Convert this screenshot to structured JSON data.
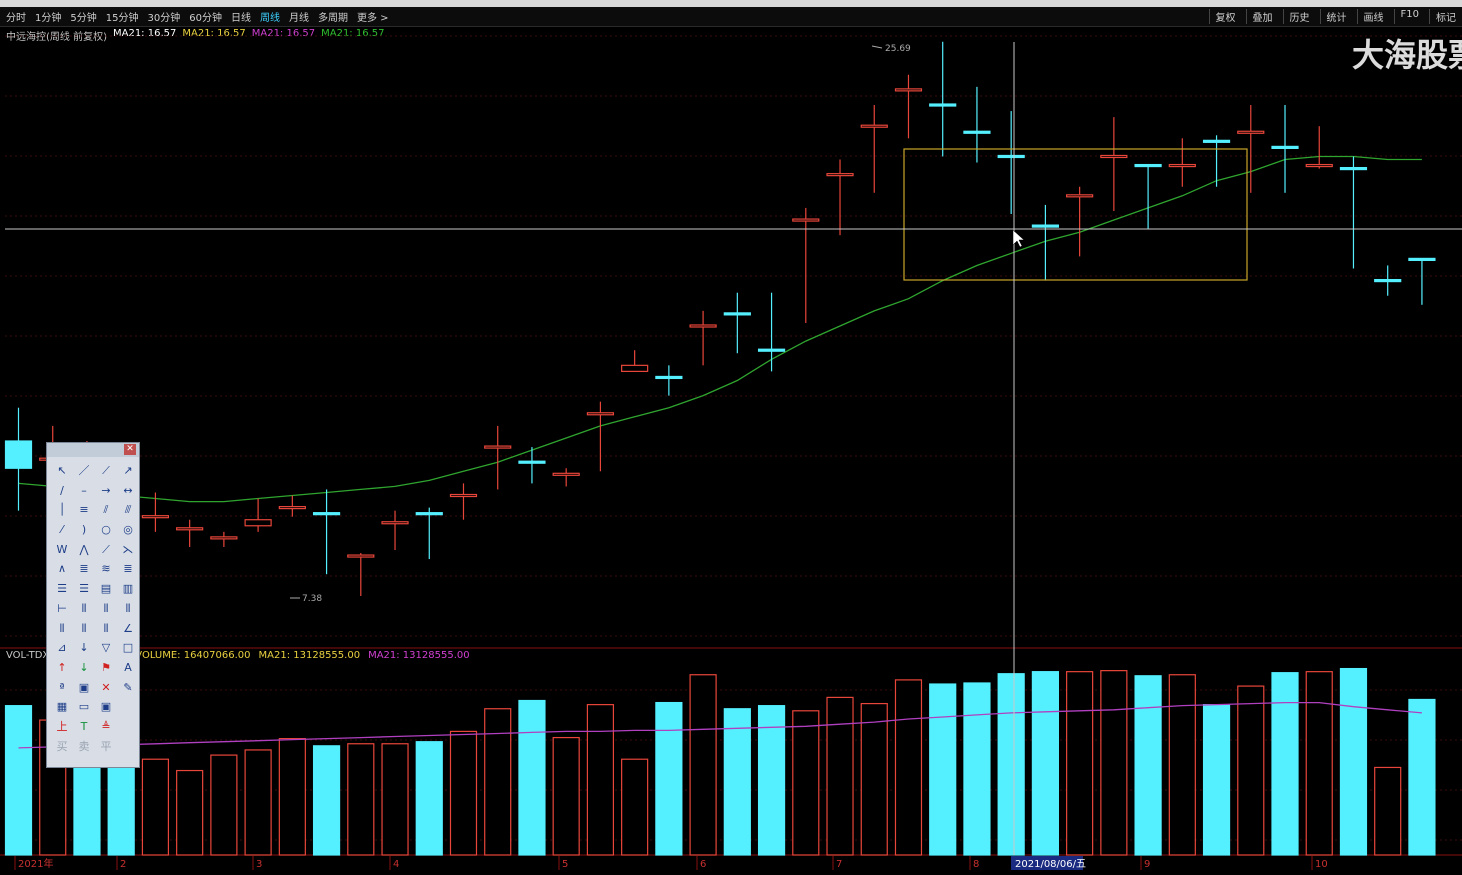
{
  "toolbar": {
    "period_tabs": [
      "分时",
      "1分钟",
      "5分钟",
      "15分钟",
      "30分钟",
      "60分钟",
      "日线",
      "周线",
      "月线",
      "多周期",
      "更多 >"
    ],
    "active_tab": "周线",
    "right_buttons": [
      "复权",
      "叠加",
      "历史",
      "统计",
      "画线",
      "F10",
      "标记"
    ]
  },
  "legend": {
    "title": "中远海控(周线 前复权)",
    "ma_label_1": "MA21: 16.57",
    "ma_label_2": "MA21: 16.57",
    "ma_label_3": "MA21: 16.57",
    "ma_label_4": "MA21: 16.57"
  },
  "watermark": "大海股票",
  "price_annotations": {
    "high_label": "25.69",
    "low_label": "7.38"
  },
  "volume_legend": {
    "name": "VOL-TDX",
    "volume": "VOLUME: 16407066.00",
    "ma1": "MA21: 13128555.00",
    "ma2": "MA21: 13128555.00"
  },
  "xaxis": {
    "labels": [
      "2021年",
      "2",
      "3",
      "4",
      "5",
      "6",
      "7",
      "8",
      "9",
      "10"
    ],
    "cursor_label": "2021/08/06/五"
  },
  "colors": {
    "up": "#e8463a",
    "down": "#55f0ff",
    "ma_price": "#2fa52f",
    "ma_volume": "#b040c0",
    "box": "#c9a528",
    "crosshair": "#c8c8c8"
  },
  "chart_data": {
    "type": "candlestick",
    "price_range": [
      7.38,
      25.69
    ],
    "high_value": 25.69,
    "low_value": 7.38,
    "ma_value": 16.57,
    "cursor_date": "2021/08/06/五",
    "ohlc": [
      [
        12.5,
        13.6,
        11.6,
        10.2,
        "down"
      ],
      [
        11.9,
        13.0,
        11.9,
        11.1,
        "up"
      ],
      [
        11.5,
        12.5,
        11.5,
        10.5,
        "up"
      ],
      [
        10.6,
        11.6,
        10.2,
        9.8,
        "up"
      ],
      [
        10.0,
        10.8,
        10.0,
        9.5,
        "up"
      ],
      [
        9.6,
        9.9,
        9.6,
        9.0,
        "up"
      ],
      [
        9.3,
        9.5,
        9.3,
        9.0,
        "up"
      ],
      [
        9.9,
        10.6,
        9.7,
        9.5,
        "up"
      ],
      [
        10.3,
        10.7,
        10.3,
        10.0,
        "up"
      ],
      [
        10.1,
        10.9,
        10.1,
        8.1,
        "down"
      ],
      [
        8.7,
        8.8,
        8.7,
        7.38,
        "up"
      ],
      [
        9.8,
        10.2,
        9.8,
        8.9,
        "up"
      ],
      [
        10.1,
        10.3,
        10.1,
        8.6,
        "down"
      ],
      [
        10.7,
        11.1,
        10.7,
        9.9,
        "up"
      ],
      [
        12.3,
        13.0,
        12.3,
        10.9,
        "up"
      ],
      [
        11.8,
        12.3,
        11.8,
        11.1,
        "down"
      ],
      [
        11.4,
        11.6,
        11.4,
        11.0,
        "up"
      ],
      [
        13.4,
        13.8,
        13.4,
        11.5,
        "up"
      ],
      [
        15.0,
        15.5,
        14.8,
        14.8,
        "up"
      ],
      [
        14.6,
        15.0,
        14.6,
        14.0,
        "down"
      ],
      [
        16.3,
        16.8,
        16.3,
        15.0,
        "up"
      ],
      [
        16.7,
        17.4,
        16.7,
        15.4,
        "down"
      ],
      [
        15.5,
        17.4,
        15.5,
        14.8,
        "down"
      ],
      [
        19.8,
        20.2,
        19.8,
        16.4,
        "up"
      ],
      [
        21.3,
        21.8,
        21.3,
        19.3,
        "up"
      ],
      [
        22.9,
        23.6,
        22.9,
        20.7,
        "up"
      ],
      [
        24.1,
        24.6,
        24.1,
        22.5,
        "up"
      ],
      [
        23.6,
        25.69,
        23.6,
        21.9,
        "down"
      ],
      [
        22.7,
        24.2,
        22.7,
        21.7,
        "down"
      ],
      [
        21.9,
        23.4,
        21.9,
        20.0,
        "down"
      ],
      [
        19.6,
        20.3,
        19.6,
        17.8,
        "down"
      ],
      [
        20.6,
        20.9,
        20.6,
        18.6,
        "up"
      ],
      [
        21.9,
        23.2,
        21.9,
        20.1,
        "up"
      ],
      [
        21.6,
        21.6,
        21.6,
        19.5,
        "down"
      ],
      [
        21.6,
        22.5,
        21.6,
        20.9,
        "up"
      ],
      [
        22.4,
        22.6,
        22.4,
        20.9,
        "down"
      ],
      [
        22.7,
        23.6,
        22.7,
        20.7,
        "up"
      ],
      [
        22.2,
        23.6,
        22.2,
        20.7,
        "down"
      ],
      [
        21.6,
        22.9,
        21.6,
        21.5,
        "up"
      ],
      [
        21.5,
        21.9,
        21.5,
        18.2,
        "down"
      ],
      [
        17.8,
        18.3,
        17.8,
        17.3,
        "down"
      ],
      [
        18.5,
        18.5,
        18.5,
        17.0,
        "down"
      ]
    ],
    "ma21": [
      11.1,
      11.0,
      10.8,
      10.7,
      10.6,
      10.5,
      10.5,
      10.6,
      10.7,
      10.8,
      10.9,
      11.0,
      11.2,
      11.5,
      11.8,
      12.2,
      12.6,
      13.0,
      13.3,
      13.6,
      14.0,
      14.5,
      15.2,
      15.8,
      16.3,
      16.8,
      17.2,
      17.8,
      18.3,
      18.7,
      19.1,
      19.4,
      19.8,
      20.2,
      20.6,
      21.1,
      21.4,
      21.8,
      21.9,
      21.9,
      21.8,
      21.8
    ],
    "volume_max": 20000000,
    "volume": [
      14.5,
      13.1,
      12.0,
      11.8,
      9.3,
      8.2,
      9.7,
      10.2,
      11.3,
      10.6,
      10.8,
      10.8,
      11.0,
      12.0,
      14.2,
      15.0,
      11.4,
      14.6,
      9.3,
      14.8,
      17.5,
      14.2,
      14.5,
      14.0,
      15.3,
      14.7,
      17.0,
      16.6,
      16.7,
      17.6,
      17.8,
      17.8,
      17.9,
      17.4,
      17.5,
      14.6,
      16.4,
      17.7,
      17.8,
      18.1,
      8.5,
      15.1
    ],
    "volume_dir": [
      "down",
      "up",
      "down",
      "down",
      "up",
      "up",
      "up",
      "up",
      "up",
      "down",
      "up",
      "up",
      "down",
      "up",
      "up",
      "down",
      "up",
      "up",
      "up",
      "down",
      "up",
      "down",
      "down",
      "up",
      "up",
      "up",
      "up",
      "down",
      "down",
      "down",
      "down",
      "up",
      "up",
      "down",
      "up",
      "down",
      "up",
      "down",
      "up",
      "down",
      "up",
      "down"
    ],
    "volume_ma": [
      10.4,
      10.5,
      10.6,
      10.7,
      10.8,
      10.9,
      11.0,
      11.1,
      11.2,
      11.3,
      11.4,
      11.5,
      11.6,
      11.7,
      11.8,
      11.9,
      12.0,
      12.0,
      12.1,
      12.1,
      12.2,
      12.3,
      12.4,
      12.5,
      12.7,
      12.9,
      13.2,
      13.4,
      13.6,
      13.8,
      13.9,
      14.0,
      14.1,
      14.3,
      14.5,
      14.6,
      14.7,
      14.8,
      14.8,
      14.4,
      14.1,
      13.8
    ]
  }
}
